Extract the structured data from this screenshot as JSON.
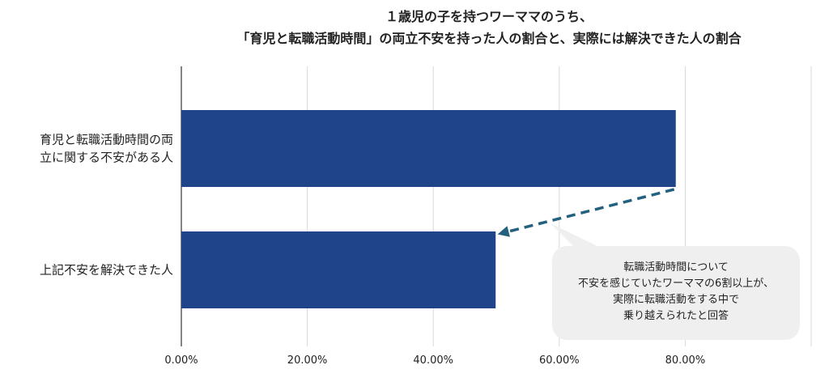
{
  "chart_data": {
    "type": "bar",
    "orientation": "horizontal",
    "title_lines": [
      "１歳児の子を持つワーママのうち、",
      "「育児と転職活動時間」の両立不安を持った人の割合と、実際には解決できた人の割合"
    ],
    "categories": [
      [
        "育児と転職活動時間の両",
        "立に関する不安がある人"
      ],
      [
        "上記不安を解決できた人"
      ]
    ],
    "values": [
      78.5,
      49.9
    ],
    "unit": "%",
    "xlim": [
      0,
      100
    ],
    "ticks": [
      0,
      20,
      40,
      60,
      80
    ],
    "tick_labels": [
      "0.00%",
      "20.00%",
      "40.00%",
      "60.00%",
      "80.00%"
    ],
    "grid": true,
    "bar_color": "#1f4489",
    "arrow_color": "#23617f",
    "annotation": {
      "lines": [
        "転職活動時間について",
        "不安を感じていたワーママの6割以上が、",
        "実際に転職活動をする中で",
        "乗り越えられたと回答"
      ],
      "background": "#efefef"
    }
  }
}
